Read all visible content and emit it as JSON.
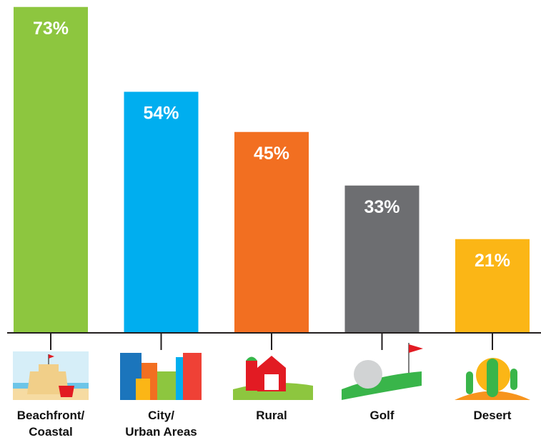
{
  "chart_data": {
    "type": "bar",
    "categories": [
      "Beachfront/\nCoastal",
      "City/\nUrban Areas",
      "Rural",
      "Golf",
      "Desert"
    ],
    "values": [
      73,
      54,
      45,
      33,
      21
    ],
    "value_labels": [
      "73%",
      "54%",
      "45%",
      "33%",
      "21%"
    ],
    "colors": [
      "#8dc63f",
      "#00aeef",
      "#f26f21",
      "#6d6e71",
      "#fbb616"
    ]
  }
}
